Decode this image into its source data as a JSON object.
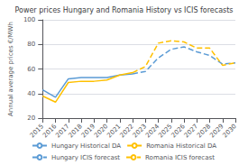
{
  "chart_data": {
    "type": "line",
    "title": "Power prices Hungary and Romania History vs ICIS forecasts",
    "y_label": "Annual average prices €/MWh",
    "x": [
      2015,
      2016,
      2017,
      2018,
      2019,
      2020,
      2021,
      2022,
      2023,
      2024,
      2025,
      2026,
      2027,
      2028,
      2029,
      2030
    ],
    "series": [
      {
        "name": "Hungary Historical DA",
        "color": "#5b9bd5",
        "line_style": "solid",
        "values": [
          43,
          37,
          52,
          53,
          53,
          53,
          55,
          56,
          null,
          null,
          null,
          null,
          null,
          null,
          null,
          null
        ]
      },
      {
        "name": "Romania Historical DA",
        "color": "#ffc000",
        "line_style": "solid",
        "values": [
          38,
          33,
          49,
          50,
          50,
          51,
          55,
          57,
          null,
          null,
          null,
          null,
          null,
          null,
          null,
          null
        ]
      },
      {
        "name": "Hungary ICIS forecast",
        "color": "#5b9bd5",
        "line_style": "dashed",
        "values": [
          null,
          null,
          null,
          null,
          null,
          null,
          null,
          56,
          58,
          69,
          76,
          78,
          74,
          71,
          64,
          65
        ]
      },
      {
        "name": "Romania ICIS forecast",
        "color": "#ffc000",
        "line_style": "dashed",
        "values": [
          null,
          null,
          null,
          null,
          null,
          null,
          null,
          57,
          62,
          81,
          83,
          82,
          77,
          77,
          63,
          65
        ]
      }
    ],
    "xlim": [
      2015,
      2030
    ],
    "xticks": [
      2015,
      2016,
      2017,
      2018,
      2019,
      2020,
      2021,
      2022,
      2023,
      2024,
      2025,
      2026,
      2027,
      2028,
      2029,
      2030
    ],
    "ylim": [
      20,
      100
    ],
    "yticks": [
      20,
      40,
      60,
      80,
      100
    ],
    "grid": true,
    "legend": "bottom"
  }
}
